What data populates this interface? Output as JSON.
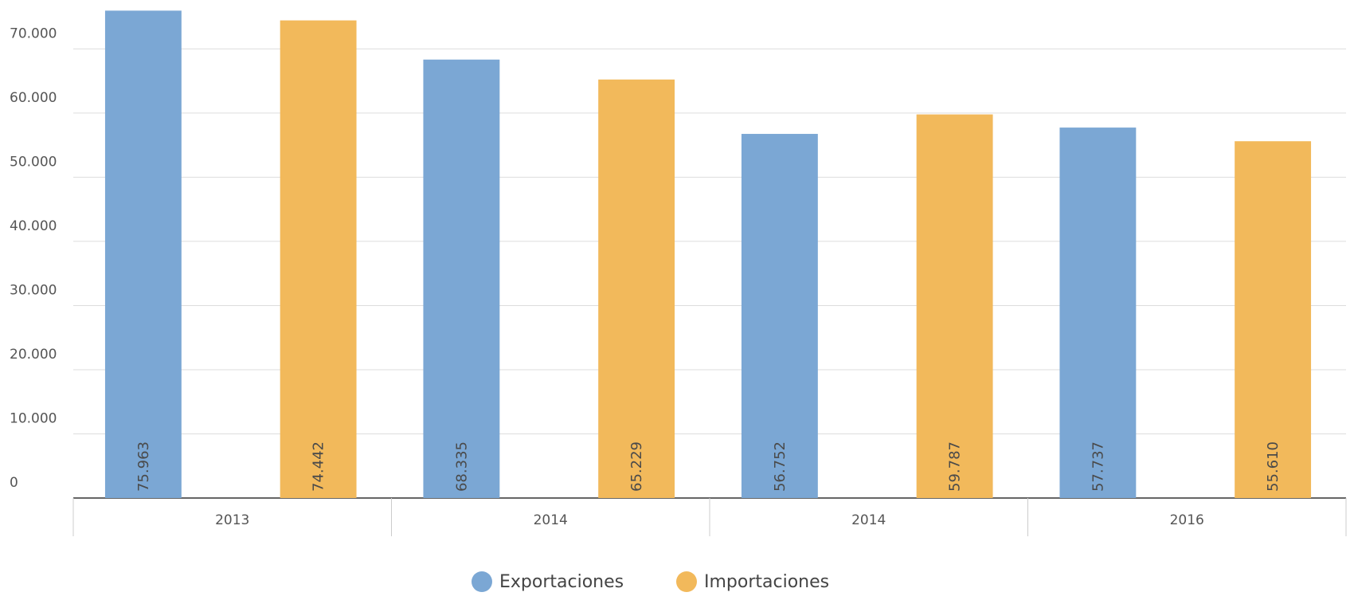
{
  "chart_data": {
    "type": "bar",
    "categories": [
      "2013",
      "2014",
      "2014",
      "2016"
    ],
    "series": [
      {
        "name": "Exportaciones",
        "color": "#7ba7d4",
        "values": [
          75963,
          68335,
          56752,
          57737
        ],
        "value_labels": [
          "75.963",
          "68.335",
          "56.752",
          "57.737"
        ]
      },
      {
        "name": "Importaciones",
        "color": "#f2b95b",
        "values": [
          74442,
          65229,
          59787,
          55610
        ],
        "value_labels": [
          "74.442",
          "65.229",
          "59.787",
          "55.610"
        ]
      }
    ],
    "ylim": [
      0,
      77000
    ],
    "yticks": [
      0,
      {
        "value": 10000,
        "label": "10.000"
      },
      {
        "value": 20000,
        "label": "20.000"
      },
      {
        "value": 30000,
        "label": "30.000"
      },
      {
        "value": 40000,
        "label": "40.000"
      },
      {
        "value": 50000,
        "label": "50.000"
      },
      {
        "value": 60000,
        "label": "60.000"
      },
      {
        "value": 70000,
        "label": "70.000"
      }
    ],
    "grid": true,
    "legend": "bottom"
  }
}
